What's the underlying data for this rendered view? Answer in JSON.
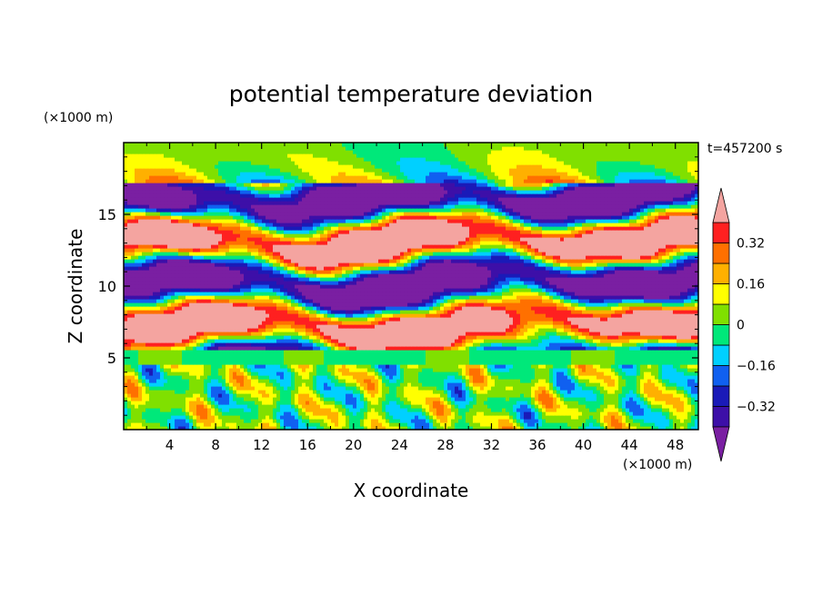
{
  "chart_data": {
    "type": "heatmap",
    "title": "potential temperature deviation",
    "xlabel": "X coordinate",
    "ylabel": "Z coordinate",
    "x_unit": "(×1000 m)",
    "y_unit": "(×1000 m)",
    "time_label": "t=457200 s",
    "xlim": [
      0,
      50
    ],
    "ylim": [
      0,
      20
    ],
    "x_ticks": [
      4,
      8,
      12,
      16,
      20,
      24,
      28,
      32,
      36,
      40,
      44,
      48
    ],
    "y_ticks": [
      5,
      10,
      15
    ],
    "colorbar": {
      "levels": [
        -0.4,
        -0.32,
        -0.24,
        -0.16,
        -0.08,
        0,
        0.08,
        0.16,
        0.24,
        0.32,
        0.4
      ],
      "labeled_levels": [
        0.32,
        0.16,
        0,
        -0.16,
        -0.32
      ],
      "colors": [
        "#7a1fa2",
        "#3d0fa8",
        "#1a1ab8",
        "#1060f0",
        "#00d0ff",
        "#00e87a",
        "#80e000",
        "#ffff00",
        "#ffb000",
        "#ff7000",
        "#ff2020",
        "#f4a4a0"
      ],
      "extend": "both"
    },
    "grid": false
  }
}
